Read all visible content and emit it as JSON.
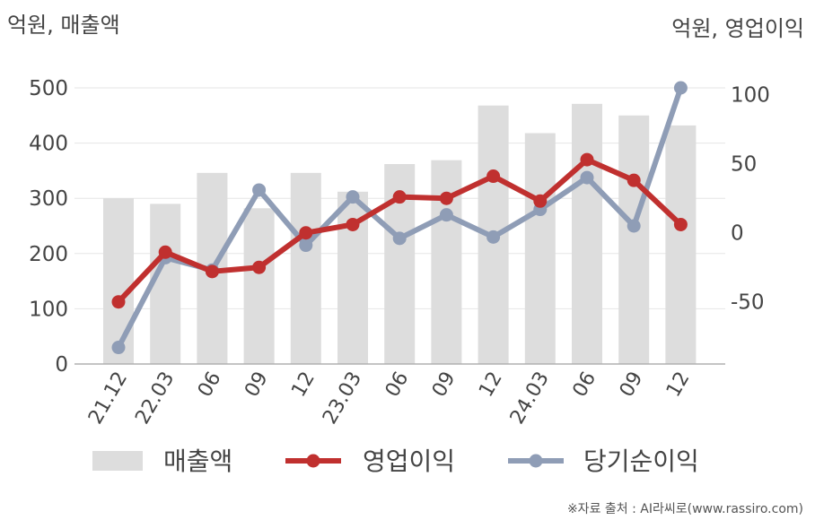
{
  "chart_data": {
    "type": "bar+line",
    "left_unit_label": "억원, 매출액",
    "right_unit_label": "억원, 영업이익",
    "categories": [
      "21.12",
      "22.03",
      "06",
      "09",
      "12",
      "23.03",
      "06",
      "09",
      "12",
      "24.03",
      "06",
      "09",
      "12"
    ],
    "left_axis": {
      "ticks": [
        "0",
        "100",
        "200",
        "300",
        "400",
        "500"
      ],
      "ylim": [
        0,
        500
      ]
    },
    "right_axis": {
      "ticks": [
        "-50",
        "0",
        "50",
        "100"
      ],
      "ylim": [
        -95,
        105
      ]
    },
    "series": [
      {
        "name": "매출액",
        "type": "bar",
        "axis": "left",
        "color": "#dddddd",
        "values": [
          300,
          290,
          346,
          282,
          346,
          312,
          362,
          369,
          468,
          418,
          471,
          450,
          432
        ]
      },
      {
        "name": "영업이익",
        "type": "line",
        "axis": "right",
        "color": "#c0302f",
        "values": [
          -50,
          -14,
          -28,
          -25,
          0,
          6,
          26,
          25,
          41,
          23,
          53,
          38,
          6
        ]
      },
      {
        "name": "당기순이익",
        "type": "line",
        "axis": "right",
        "color": "#8f9db6",
        "values": [
          -83,
          -18,
          -27,
          31,
          -9,
          26,
          -4,
          13,
          -3,
          17,
          40,
          5,
          105
        ]
      }
    ],
    "grid": true,
    "legend_position": "bottom"
  },
  "source_note": "※자료 출처 : AI라씨로(www.rassiro.com)"
}
